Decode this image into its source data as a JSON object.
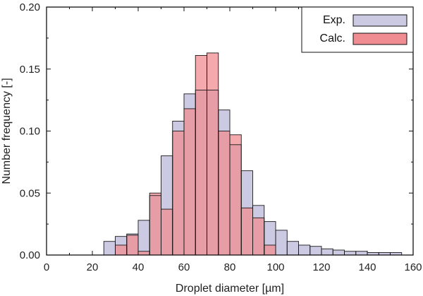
{
  "chart_data": {
    "type": "bar",
    "xlabel": "Droplet diameter [µm]",
    "ylabel": "Number frequency [-]",
    "xlim": [
      0,
      160
    ],
    "ylim": [
      0,
      0.2
    ],
    "bin_width": 5,
    "xticks": [
      0,
      20,
      40,
      60,
      80,
      100,
      120,
      140,
      160
    ],
    "yticks": [
      "0.00",
      "0.05",
      "0.10",
      "0.15",
      "0.20"
    ],
    "legend_position": "top-right",
    "grid": false,
    "series": [
      {
        "name": "Exp.",
        "color": "#ccc9e2",
        "bins": [
          {
            "x0": 25,
            "x1": 30,
            "value": 0.011
          },
          {
            "x0": 30,
            "x1": 35,
            "value": 0.015
          },
          {
            "x0": 35,
            "x1": 40,
            "value": 0.017
          },
          {
            "x0": 40,
            "x1": 45,
            "value": 0.028
          },
          {
            "x0": 45,
            "x1": 50,
            "value": 0.048
          },
          {
            "x0": 50,
            "x1": 55,
            "value": 0.08
          },
          {
            "x0": 55,
            "x1": 60,
            "value": 0.108
          },
          {
            "x0": 60,
            "x1": 65,
            "value": 0.13
          },
          {
            "x0": 65,
            "x1": 70,
            "value": 0.133
          },
          {
            "x0": 70,
            "x1": 75,
            "value": 0.133
          },
          {
            "x0": 75,
            "x1": 80,
            "value": 0.117
          },
          {
            "x0": 80,
            "x1": 85,
            "value": 0.089
          },
          {
            "x0": 85,
            "x1": 90,
            "value": 0.068
          },
          {
            "x0": 90,
            "x1": 95,
            "value": 0.04
          },
          {
            "x0": 95,
            "x1": 100,
            "value": 0.027
          },
          {
            "x0": 100,
            "x1": 105,
            "value": 0.02
          },
          {
            "x0": 105,
            "x1": 110,
            "value": 0.011
          },
          {
            "x0": 110,
            "x1": 115,
            "value": 0.008
          },
          {
            "x0": 115,
            "x1": 120,
            "value": 0.007
          },
          {
            "x0": 120,
            "x1": 125,
            "value": 0.005
          },
          {
            "x0": 125,
            "x1": 130,
            "value": 0.004
          },
          {
            "x0": 130,
            "x1": 135,
            "value": 0.003
          },
          {
            "x0": 135,
            "x1": 140,
            "value": 0.003
          },
          {
            "x0": 140,
            "x1": 145,
            "value": 0.002
          },
          {
            "x0": 145,
            "x1": 150,
            "value": 0.002
          },
          {
            "x0": 150,
            "x1": 155,
            "value": 0.002
          }
        ]
      },
      {
        "name": "Calc.",
        "color": "#f08d92",
        "bins": [
          {
            "x0": 30,
            "x1": 35,
            "value": 0.008
          },
          {
            "x0": 35,
            "x1": 40,
            "value": 0.016
          },
          {
            "x0": 40,
            "x1": 45,
            "value": 0.003
          },
          {
            "x0": 45,
            "x1": 50,
            "value": 0.05
          },
          {
            "x0": 50,
            "x1": 55,
            "value": 0.037
          },
          {
            "x0": 55,
            "x1": 60,
            "value": 0.1
          },
          {
            "x0": 60,
            "x1": 65,
            "value": 0.118
          },
          {
            "x0": 65,
            "x1": 70,
            "value": 0.161
          },
          {
            "x0": 70,
            "x1": 75,
            "value": 0.163
          },
          {
            "x0": 75,
            "x1": 80,
            "value": 0.1
          },
          {
            "x0": 80,
            "x1": 85,
            "value": 0.097
          },
          {
            "x0": 85,
            "x1": 90,
            "value": 0.038
          },
          {
            "x0": 90,
            "x1": 95,
            "value": 0.03
          },
          {
            "x0": 95,
            "x1": 100,
            "value": 0.008
          }
        ]
      }
    ]
  }
}
